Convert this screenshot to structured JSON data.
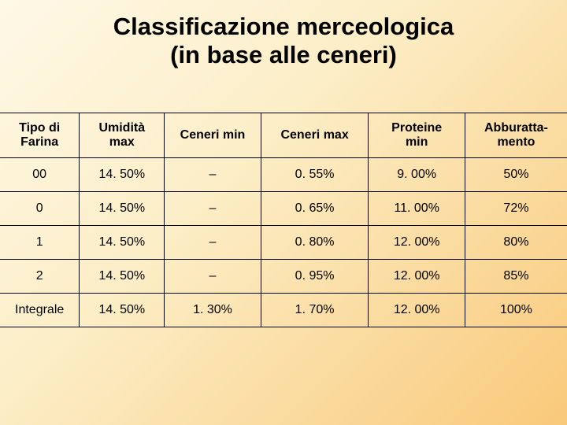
{
  "title_line1": "Classificazione merceologica",
  "title_line2": "(in base alle ceneri)",
  "title_fontsize": 31,
  "header_fontsize": 16,
  "cell_fontsize": 16,
  "columns": [
    "Tipo di Farina",
    "Umidità max",
    "Ceneri min",
    "Ceneri max",
    "Proteine min",
    "Abburatta-mento"
  ],
  "col_widths_pct": [
    14,
    15,
    17,
    19,
    17,
    18
  ],
  "rows": [
    [
      "00",
      "14. 50%",
      "–",
      "0. 55%",
      "9. 00%",
      "50%"
    ],
    [
      "0",
      "14. 50%",
      "–",
      "0. 65%",
      "11. 00%",
      "72%"
    ],
    [
      "1",
      "14. 50%",
      "–",
      "0. 80%",
      "12. 00%",
      "80%"
    ],
    [
      "2",
      "14. 50%",
      "–",
      "0. 95%",
      "12. 00%",
      "85%"
    ],
    [
      "Integrale",
      "14. 50%",
      "1. 30%",
      "1. 70%",
      "12. 00%",
      "100%"
    ]
  ],
  "border_color": "#000000",
  "text_color": "#000000"
}
